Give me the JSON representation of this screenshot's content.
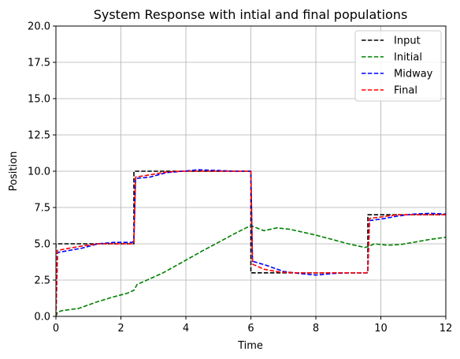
{
  "chart_data": {
    "type": "line",
    "title": "System Response with intial and final populations",
    "xlabel": "Time",
    "ylabel": "Position",
    "xlim": [
      0,
      12
    ],
    "ylim": [
      0,
      20
    ],
    "xticks": [
      0,
      2,
      4,
      6,
      8,
      10,
      12
    ],
    "yticks": [
      0.0,
      2.5,
      5.0,
      7.5,
      10.0,
      12.5,
      15.0,
      17.5,
      20.0
    ],
    "xtick_labels": [
      "0",
      "2",
      "4",
      "6",
      "8",
      "10",
      "12"
    ],
    "ytick_labels": [
      "0.0",
      "2.5",
      "5.0",
      "7.5",
      "10.0",
      "12.5",
      "15.0",
      "17.5",
      "20.0"
    ],
    "grid": true,
    "legend_position": "top-right",
    "series": [
      {
        "name": "Input",
        "color": "#000000",
        "x": [
          0,
          0,
          2.4,
          2.4,
          6.0,
          6.0,
          9.6,
          9.6,
          12
        ],
        "y": [
          0,
          5.0,
          5.0,
          10.0,
          10.0,
          3.0,
          3.0,
          7.0,
          7.0
        ]
      },
      {
        "name": "Initial",
        "color": "#008000",
        "x": [
          0,
          0.05,
          0.2,
          0.7,
          1.2,
          1.7,
          2.2,
          2.4,
          2.5,
          2.9,
          3.3,
          3.7,
          4.1,
          4.5,
          5.0,
          5.5,
          5.9,
          6.0,
          6.4,
          6.8,
          7.2,
          7.6,
          8.0,
          8.5,
          9.0,
          9.5,
          9.6,
          9.8,
          10.2,
          10.6,
          11.0,
          11.5,
          12.0
        ],
        "y": [
          0,
          0.3,
          0.4,
          0.55,
          0.95,
          1.3,
          1.6,
          1.8,
          2.2,
          2.6,
          3.0,
          3.5,
          4.0,
          4.5,
          5.1,
          5.7,
          6.15,
          6.25,
          5.9,
          6.1,
          6.0,
          5.8,
          5.6,
          5.3,
          5.0,
          4.75,
          4.8,
          5.0,
          4.9,
          4.95,
          5.1,
          5.3,
          5.45
        ]
      },
      {
        "name": "Midway",
        "color": "#0000ff",
        "x": [
          0,
          0.05,
          0.3,
          0.8,
          1.3,
          1.8,
          2.35,
          2.4,
          2.45,
          2.9,
          3.4,
          3.9,
          4.4,
          5.0,
          5.5,
          5.95,
          6.0,
          6.05,
          6.5,
          7.0,
          7.5,
          8.0,
          8.5,
          9.0,
          9.55,
          9.6,
          9.65,
          10.0,
          10.5,
          11.0,
          11.5,
          12.0
        ],
        "y": [
          0,
          4.4,
          4.5,
          4.7,
          5.0,
          5.1,
          5.1,
          5.2,
          9.5,
          9.6,
          9.9,
          10.0,
          10.1,
          10.05,
          10.0,
          10.0,
          10.0,
          3.8,
          3.5,
          3.1,
          2.95,
          2.85,
          2.95,
          3.0,
          3.0,
          3.05,
          6.6,
          6.7,
          6.9,
          7.05,
          7.1,
          7.05
        ]
      },
      {
        "name": "Final",
        "color": "#ff0000",
        "x": [
          0,
          0.05,
          0.3,
          0.8,
          1.3,
          1.8,
          2.35,
          2.4,
          2.45,
          2.9,
          3.4,
          3.9,
          4.4,
          5.0,
          5.5,
          5.95,
          6.0,
          6.05,
          6.4,
          6.9,
          7.4,
          8.0,
          8.5,
          9.0,
          9.55,
          9.6,
          9.65,
          10.0,
          10.5,
          11.0,
          11.5,
          12.0
        ],
        "y": [
          0,
          4.55,
          4.65,
          4.85,
          5.0,
          5.0,
          5.0,
          5.1,
          9.6,
          9.75,
          9.95,
          10.0,
          10.0,
          10.0,
          10.0,
          10.0,
          10.0,
          3.6,
          3.25,
          3.05,
          3.0,
          3.0,
          3.0,
          3.0,
          3.0,
          3.05,
          6.75,
          6.85,
          7.0,
          7.0,
          7.0,
          7.0
        ]
      }
    ]
  }
}
